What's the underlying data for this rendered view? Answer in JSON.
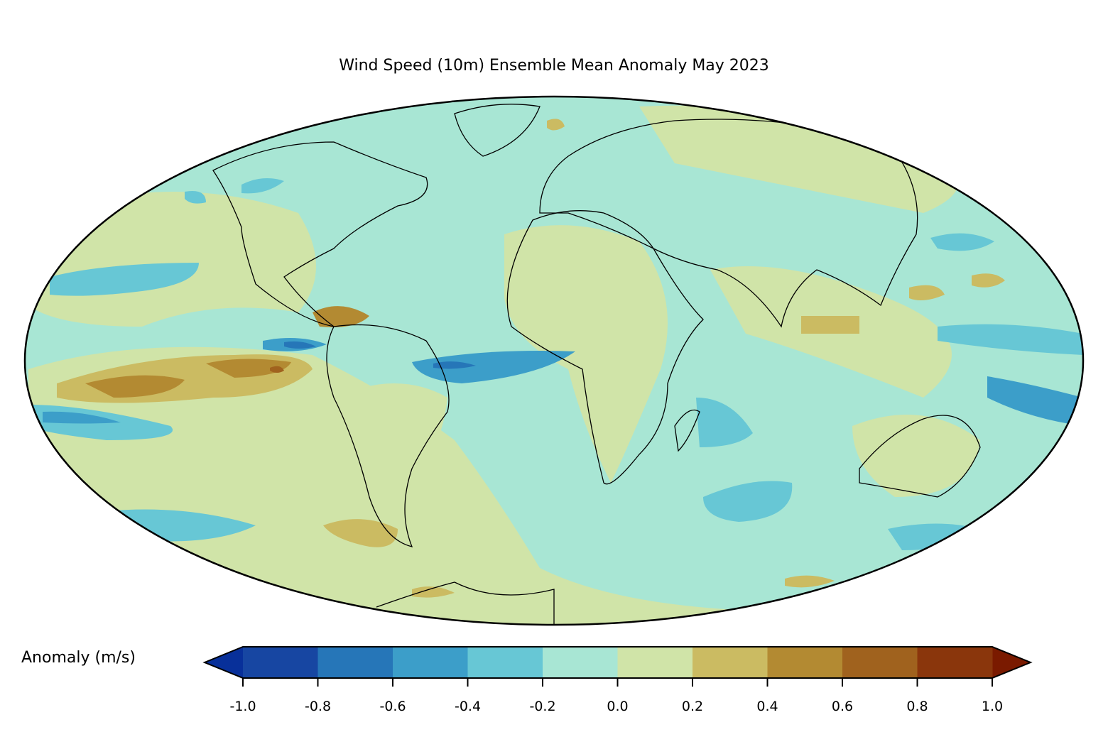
{
  "title": "Wind Speed (10m) Ensemble Mean Anomaly May 2023",
  "projection": "Mollweide",
  "colorbar": {
    "label": "Anomaly (m/s)",
    "ticks": [
      "-1.0",
      "-0.8",
      "-0.6",
      "-0.4",
      "-0.2",
      "0.0",
      "0.2",
      "0.4",
      "0.6",
      "0.8",
      "1.0"
    ],
    "levels": [
      -1.0,
      -0.8,
      -0.6,
      -0.4,
      -0.2,
      0.0,
      0.2,
      0.4,
      0.6,
      0.8,
      1.0
    ],
    "colors": [
      "#1746a2",
      "#2676b8",
      "#3c9ec9",
      "#67c7d5",
      "#a8e6d4",
      "#d0e4a8",
      "#cbbb62",
      "#b38a32",
      "#a0621e",
      "#8a360c"
    ],
    "extend_low_color": "#08309a",
    "extend_high_color": "#7a1a00"
  }
}
